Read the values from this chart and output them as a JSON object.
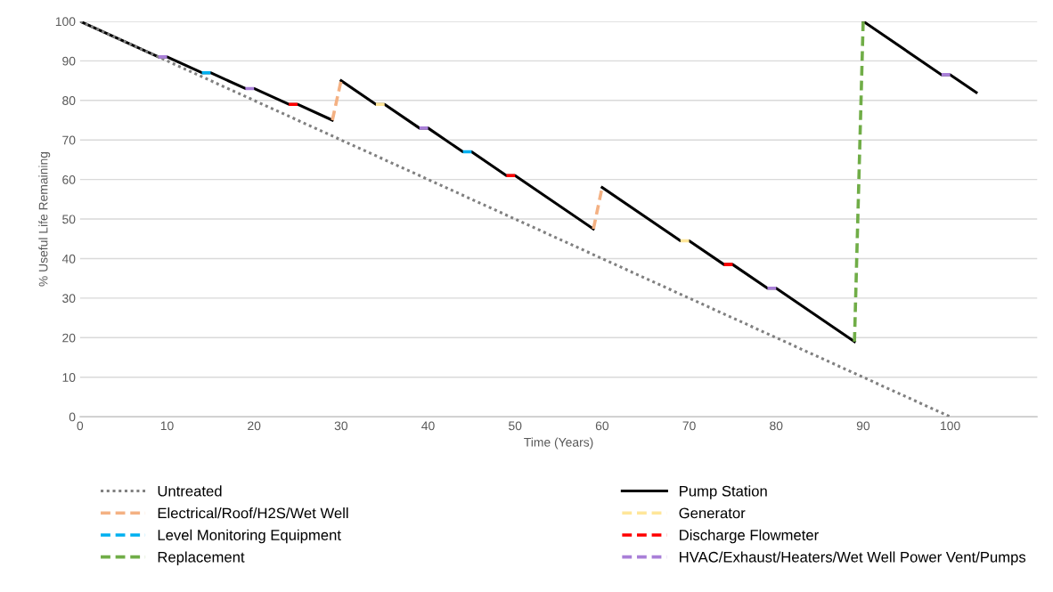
{
  "chart_data": {
    "type": "line",
    "xlabel": "Time (Years)",
    "ylabel": "% Useful Life Remaining",
    "xlim": [
      0,
      110
    ],
    "xticks": [
      0,
      10,
      20,
      30,
      40,
      50,
      60,
      70,
      80,
      90,
      100
    ],
    "ylim": [
      0,
      100
    ],
    "yticks": [
      0,
      10,
      20,
      30,
      40,
      50,
      60,
      70,
      80,
      90,
      100
    ],
    "grid": "y",
    "legend": "bottom",
    "series": [
      {
        "name": "Untreated",
        "color": "#808080",
        "line_style": "dotted",
        "x": [
          0,
          100
        ],
        "values": [
          100,
          0
        ]
      },
      {
        "name": "Pump Station",
        "color": "#000000",
        "line_style": "solid",
        "x": [
          0,
          9,
          10,
          14,
          15,
          19,
          20,
          24,
          25,
          29,
          null,
          30,
          34,
          35,
          39,
          40,
          44,
          45,
          49,
          50,
          59,
          null,
          60,
          69,
          70,
          74,
          75,
          79,
          80,
          89,
          null,
          90,
          99,
          100,
          103
        ],
        "values": [
          100,
          91,
          91,
          87,
          87,
          83,
          83,
          79,
          79,
          75,
          null,
          85,
          79,
          79,
          73,
          73,
          67,
          67,
          61,
          61,
          47.5,
          null,
          58,
          44.5,
          44.5,
          38.5,
          38.5,
          32.5,
          32.5,
          19,
          null,
          100,
          86.5,
          86.5,
          82
        ]
      },
      {
        "name": "Electrical/Roof/H2S/Wet Well",
        "color": "#f4b183",
        "line_style": "dashed",
        "x": [
          29,
          30,
          null,
          59,
          60
        ],
        "values": [
          75,
          85,
          null,
          47.5,
          58
        ]
      },
      {
        "name": "Generator",
        "color": "#ffe699",
        "line_style": "dashed",
        "x": [
          34,
          35,
          null,
          69,
          70
        ],
        "values": [
          79,
          79,
          null,
          44.5,
          44.5
        ]
      },
      {
        "name": "Level Monitoring Equipment",
        "color": "#00b0f0",
        "line_style": "dashed",
        "x": [
          14,
          15,
          null,
          44,
          45
        ],
        "values": [
          87,
          87,
          null,
          67,
          67
        ]
      },
      {
        "name": "Discharge Flowmeter",
        "color": "#ff0000",
        "line_style": "dashed",
        "x": [
          24,
          25,
          null,
          49,
          50,
          null,
          74,
          75
        ],
        "values": [
          79,
          79,
          null,
          61,
          61,
          null,
          38.5,
          38.5
        ]
      },
      {
        "name": "Replacement",
        "color": "#70ad47",
        "line_style": "dashed",
        "x": [
          89,
          90
        ],
        "values": [
          19,
          100
        ]
      },
      {
        "name": "HVAC/Exhaust/Heaters/Wet Well Power Vent/Pumps",
        "color": "#a97fd8",
        "line_style": "dashed",
        "x": [
          9,
          10,
          null,
          19,
          20,
          null,
          39,
          40,
          null,
          79,
          80,
          null,
          99,
          100
        ],
        "values": [
          91,
          91,
          null,
          83,
          83,
          null,
          73,
          73,
          null,
          32.5,
          32.5,
          null,
          86.5,
          86.5
        ]
      }
    ]
  }
}
